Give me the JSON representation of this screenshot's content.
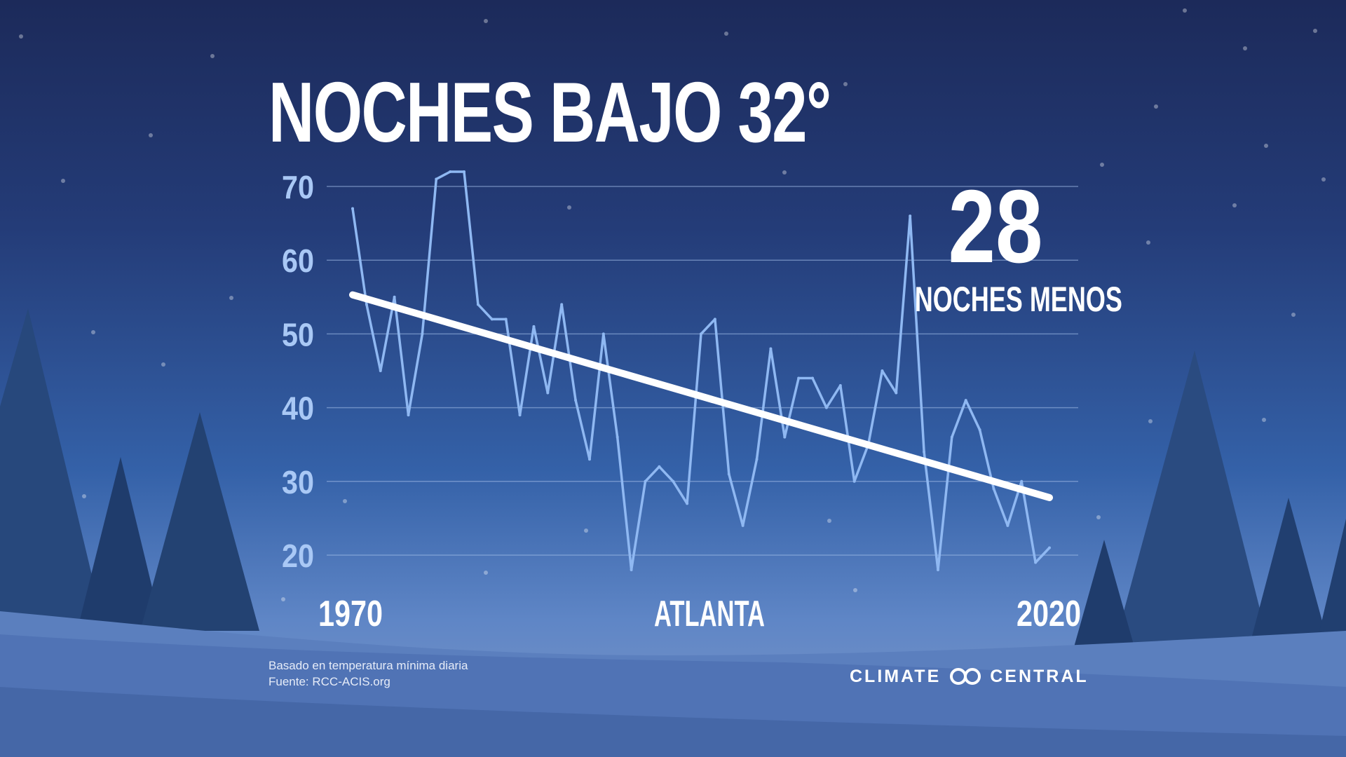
{
  "title": "NOCHES BAJO 32°",
  "highlight": {
    "value": "28",
    "caption": "NOCHES MENOS"
  },
  "footnote": {
    "line1": "Basado en temperatura mínima diaria",
    "line2": "Fuente: RCC-ACIS.org"
  },
  "brand": {
    "left": "CLIMATE",
    "right": "CENTRAL",
    "logo": "climate-central-logo-icon"
  },
  "colors": {
    "series": "#8fb8f2",
    "trend": "#ffffff",
    "grid": "#9fbbe6",
    "axis_text": "#a9c8f5"
  },
  "chart_data": {
    "type": "line",
    "title": "NOCHES BAJO 32°",
    "xlabel": "ATLANTA",
    "ylabel": "",
    "x_tick_labels": [
      "1970",
      "2020"
    ],
    "xlim": [
      1970,
      2020
    ],
    "ylim": [
      20,
      70
    ],
    "yticks": [
      20,
      30,
      40,
      50,
      60,
      70
    ],
    "grid": true,
    "series": [
      {
        "x": [
          1970,
          1971,
          1972,
          1973,
          1974,
          1975,
          1976,
          1977,
          1978,
          1979,
          1980,
          1981,
          1982,
          1983,
          1984,
          1985,
          1986,
          1987,
          1988,
          1989,
          1990,
          1991,
          1992,
          1993,
          1994,
          1995,
          1996,
          1997,
          1998,
          1999,
          2000,
          2001,
          2002,
          2003,
          2004,
          2005,
          2006,
          2007,
          2008,
          2009,
          2010,
          2011,
          2012,
          2013,
          2014,
          2015,
          2016,
          2017,
          2018,
          2019,
          2020
        ],
        "values": [
          67,
          54,
          45,
          55,
          39,
          50,
          71,
          72,
          72,
          54,
          52,
          52,
          39,
          51,
          42,
          54,
          41,
          33,
          50,
          36,
          18,
          30,
          32,
          30,
          27,
          50,
          52,
          31,
          24,
          33,
          48,
          36,
          44,
          44,
          40,
          43,
          30,
          35,
          45,
          42,
          66,
          34,
          18,
          36,
          41,
          37,
          29,
          24,
          30,
          19,
          21
        ]
      }
    ],
    "trend": {
      "x": [
        1970,
        2020
      ],
      "values": [
        55.3,
        27.8
      ]
    }
  }
}
